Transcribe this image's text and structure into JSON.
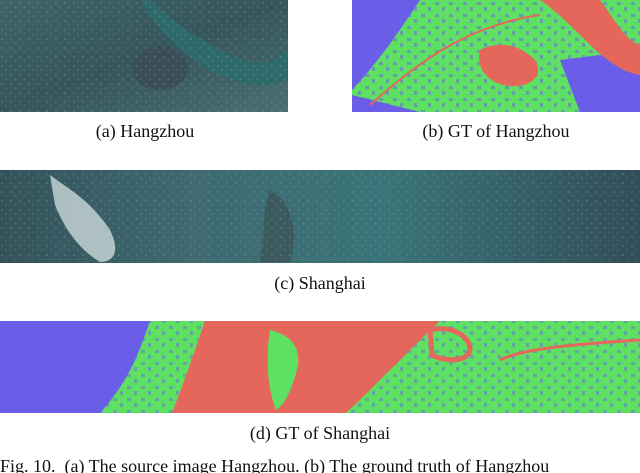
{
  "figure": {
    "panels": [
      {
        "caption": "(a) Hangzhou"
      },
      {
        "caption": "(b) GT of Hangzhou"
      },
      {
        "caption": "(c) Shanghai"
      },
      {
        "caption": "(d) GT of Shanghai"
      }
    ],
    "caption": "Fig. 10.  (a) The source image Hangzhou. (b) The ground truth of Hangzhou"
  }
}
